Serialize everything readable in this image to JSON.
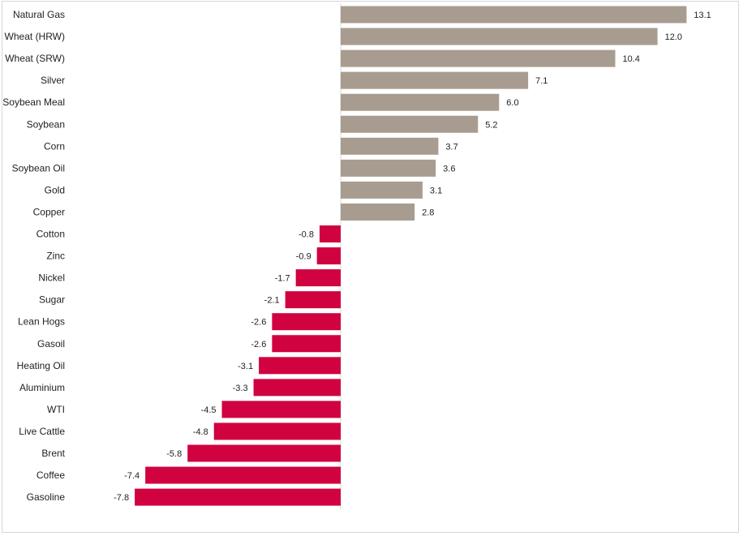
{
  "chart_data": {
    "type": "bar",
    "orientation": "horizontal",
    "categories": [
      "Natural Gas",
      "Wheat (HRW)",
      "Wheat (SRW)",
      "Silver",
      "Soybean Meal",
      "Soybean",
      "Corn",
      "Soybean Oil",
      "Gold",
      "Copper",
      "Cotton",
      "Zinc",
      "Nickel",
      "Sugar",
      "Lean Hogs",
      "Gasoil",
      "Heating Oil",
      "Aluminium",
      "WTI",
      "Live Cattle",
      "Brent",
      "Coffee",
      "Gasoline"
    ],
    "values": [
      13.1,
      12.0,
      10.4,
      7.1,
      6.0,
      5.2,
      3.7,
      3.6,
      3.1,
      2.8,
      -0.8,
      -0.9,
      -1.7,
      -2.1,
      -2.6,
      -2.6,
      -3.1,
      -3.3,
      -4.5,
      -4.8,
      -5.8,
      -7.4,
      -7.8
    ],
    "value_labels": [
      "13.1",
      "12.0",
      "10.4",
      "7.1",
      "6.0",
      "5.2",
      "3.7",
      "3.6",
      "3.1",
      "2.8",
      "-0.8",
      "-0.9",
      "-1.7",
      "-2.1",
      "-2.6",
      "-2.6",
      "-3.1",
      "-3.3",
      "-4.5",
      "-4.8",
      "-5.8",
      "-7.4",
      "-7.8"
    ],
    "title": "",
    "xlabel": "",
    "ylabel": "",
    "xlim": [
      -7.8,
      13.1
    ],
    "grid": false,
    "legend": "none",
    "colors": {
      "positive": "#a89c90",
      "negative": "#d0023f",
      "zero_line": "#d9d9d9"
    }
  }
}
